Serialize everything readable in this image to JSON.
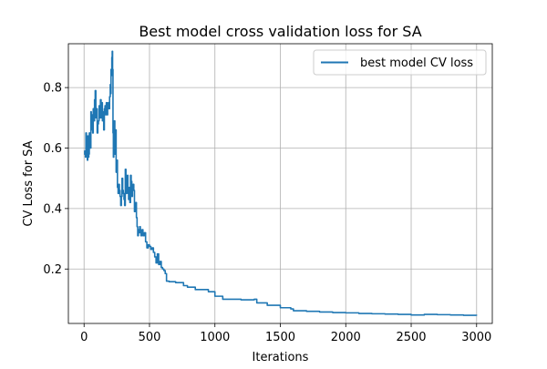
{
  "chart_data": {
    "type": "line",
    "title": "Best model cross validation loss for SA",
    "xlabel": "Iterations",
    "ylabel": "CV Loss for SA",
    "xlim": [
      -120,
      3120
    ],
    "ylim": [
      0.02,
      0.945
    ],
    "xticks": [
      0,
      500,
      1000,
      1500,
      2000,
      2500,
      3000
    ],
    "yticks": [
      0.2,
      0.4,
      0.6,
      0.8
    ],
    "xtick_labels": [
      "0",
      "500",
      "1000",
      "1500",
      "2000",
      "2500",
      "3000"
    ],
    "ytick_labels": [
      "0.2",
      "0.4",
      "0.6",
      "0.8"
    ],
    "grid": true,
    "legend": {
      "placement": "top-right"
    },
    "series": [
      {
        "name": "best model CV loss",
        "color": "#1f77b4",
        "x": [
          0,
          5,
          10,
          14,
          18,
          22,
          25,
          28,
          32,
          36,
          40,
          44,
          48,
          52,
          55,
          58,
          62,
          66,
          70,
          75,
          80,
          85,
          90,
          95,
          100,
          105,
          110,
          115,
          120,
          125,
          130,
          135,
          140,
          145,
          150,
          155,
          160,
          165,
          170,
          175,
          180,
          185,
          190,
          195,
          200,
          203,
          206,
          209,
          212,
          215,
          218,
          221,
          224,
          227,
          230,
          235,
          240,
          245,
          250,
          255,
          260,
          265,
          270,
          275,
          280,
          285,
          290,
          295,
          300,
          305,
          310,
          315,
          320,
          325,
          330,
          335,
          340,
          345,
          350,
          355,
          360,
          365,
          370,
          375,
          380,
          385,
          390,
          395,
          400,
          405,
          410,
          415,
          420,
          425,
          430,
          435,
          440,
          445,
          450,
          460,
          470,
          480,
          490,
          500,
          510,
          520,
          530,
          540,
          550,
          560,
          570,
          580,
          590,
          600,
          610,
          620,
          630,
          650,
          700,
          760,
          790,
          850,
          950,
          1000,
          1060,
          1200,
          1300,
          1320,
          1400,
          1500,
          1580,
          1600,
          1700,
          1800,
          1900,
          2000,
          2100,
          2200,
          2300,
          2400,
          2500,
          2600,
          2700,
          2800,
          2900,
          3000
        ],
        "values": [
          0.58,
          0.59,
          0.57,
          0.65,
          0.6,
          0.62,
          0.56,
          0.64,
          0.57,
          0.58,
          0.65,
          0.62,
          0.6,
          0.72,
          0.66,
          0.7,
          0.71,
          0.65,
          0.73,
          0.69,
          0.76,
          0.79,
          0.7,
          0.73,
          0.65,
          0.68,
          0.69,
          0.74,
          0.7,
          0.76,
          0.7,
          0.75,
          0.69,
          0.72,
          0.66,
          0.73,
          0.74,
          0.71,
          0.75,
          0.71,
          0.74,
          0.75,
          0.73,
          0.77,
          0.81,
          0.78,
          0.86,
          0.84,
          0.9,
          0.92,
          0.86,
          0.65,
          0.57,
          0.62,
          0.69,
          0.58,
          0.66,
          0.52,
          0.56,
          0.47,
          0.45,
          0.48,
          0.46,
          0.44,
          0.41,
          0.44,
          0.5,
          0.46,
          0.45,
          0.43,
          0.41,
          0.53,
          0.45,
          0.48,
          0.51,
          0.45,
          0.43,
          0.47,
          0.42,
          0.51,
          0.49,
          0.44,
          0.46,
          0.48,
          0.46,
          0.39,
          0.41,
          0.42,
          0.37,
          0.34,
          0.31,
          0.33,
          0.32,
          0.34,
          0.33,
          0.31,
          0.32,
          0.33,
          0.31,
          0.32,
          0.29,
          0.27,
          0.28,
          0.275,
          0.265,
          0.27,
          0.255,
          0.24,
          0.22,
          0.25,
          0.215,
          0.225,
          0.205,
          0.2,
          0.195,
          0.185,
          0.16,
          0.158,
          0.155,
          0.145,
          0.14,
          0.132,
          0.125,
          0.11,
          0.1,
          0.098,
          0.1,
          0.088,
          0.08,
          0.072,
          0.068,
          0.062,
          0.06,
          0.058,
          0.056,
          0.055,
          0.053,
          0.052,
          0.051,
          0.05,
          0.048,
          0.05,
          0.049,
          0.048,
          0.047,
          0.046
        ]
      }
    ]
  }
}
